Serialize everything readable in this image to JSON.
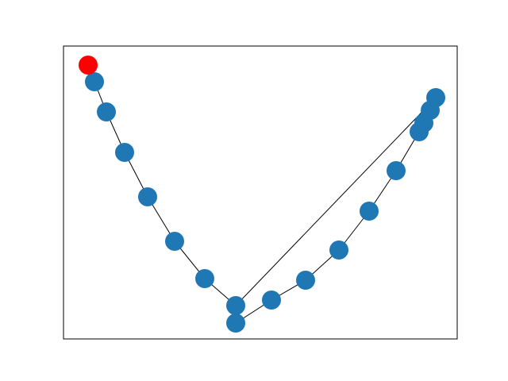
{
  "graph": {
    "edge_color": "#000000",
    "node_color": "#1f77b4",
    "highlight_color": "#ff0000",
    "frame_color": "#000000",
    "highlighted_node": 0,
    "edges": [
      [
        0,
        1
      ],
      [
        1,
        2
      ],
      [
        2,
        3
      ],
      [
        3,
        4
      ],
      [
        4,
        5
      ],
      [
        5,
        6
      ],
      [
        6,
        7
      ],
      [
        7,
        8
      ],
      [
        8,
        9
      ],
      [
        9,
        10
      ],
      [
        10,
        11
      ],
      [
        11,
        12
      ],
      [
        12,
        13
      ],
      [
        13,
        14
      ],
      [
        14,
        15
      ],
      [
        15,
        16
      ],
      [
        16,
        17
      ],
      [
        17,
        18
      ]
    ]
  }
}
